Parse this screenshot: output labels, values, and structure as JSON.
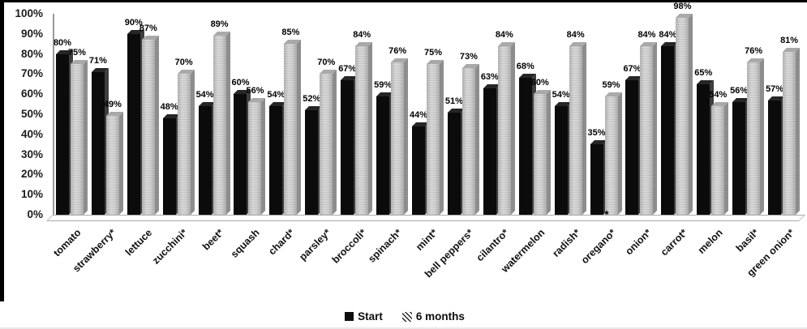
{
  "page": {
    "background": "#ffffff",
    "frame_color": "#000000"
  },
  "chart_data": {
    "type": "bar",
    "title": "",
    "xlabel": "",
    "ylabel": "",
    "value_suffix": "%",
    "ylim": [
      0,
      100
    ],
    "ytick_step": 10,
    "ytick_labels": [
      "100%",
      "90%",
      "80%",
      "70%",
      "60%",
      "50%",
      "40%",
      "30%",
      "20%",
      "10%",
      "0%"
    ],
    "grid": false,
    "effect": "3d-column",
    "categories": [
      "tomato",
      "strawberry*",
      "lettuce",
      "zucchini*",
      "beet*",
      "squash",
      "chard*",
      "parsley*",
      "broccoli*",
      "spinach*",
      "mint*",
      "bell peppers*",
      "cilantro*",
      "watermelon",
      "radish*",
      "oregano*",
      "onion*",
      "carrot*",
      "melon",
      "basil*",
      "green onion*"
    ],
    "series": [
      {
        "name": "Start",
        "style": "solid-black",
        "color": "#0b0b0b",
        "values": [
          80,
          71,
          90,
          48,
          54,
          60,
          54,
          52,
          67,
          59,
          44,
          51,
          63,
          68,
          54,
          35,
          67,
          84,
          65,
          56,
          57
        ]
      },
      {
        "name": "6 months",
        "style": "gray-hatched",
        "color": "#cccccc",
        "values": [
          75,
          49,
          87,
          70,
          89,
          56,
          85,
          70,
          84,
          76,
          75,
          73,
          84,
          60,
          84,
          59,
          84,
          98,
          54,
          76,
          81
        ]
      }
    ],
    "data_labels": "value-above-bar",
    "annotations": [
      {
        "text": "*",
        "category": "oregano*",
        "position": "baseline"
      }
    ],
    "legend_position": "bottom-center",
    "legend": [
      {
        "label": "Start",
        "swatch": "solid-black"
      },
      {
        "label": "6 months",
        "swatch": "diagonal-hatch"
      }
    ],
    "colors": {
      "axis_line": "#9a9a9a",
      "tick_text": "#1c1c1c",
      "label_text": "#000000"
    }
  }
}
